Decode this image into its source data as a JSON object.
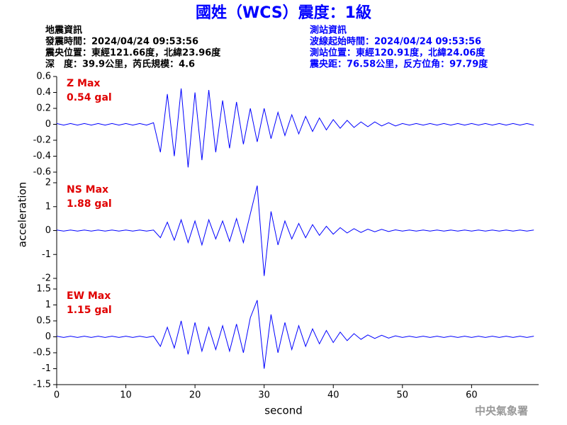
{
  "header": {
    "title": "國姓（WCS）震度：1級",
    "title_color": "#0000ff",
    "left": [
      "地震資訊",
      "發震時間：2024/04/24 09:53:56",
      "震央位置：東經121.66度，北緯23.96度",
      "深　度：39.9公里，芮氏規模：4.6"
    ],
    "right": [
      "測站資訊",
      "波線起始時間：2024/04/24 09:53:56",
      "測站位置：東經120.91度，北緯24.06度",
      "震央距：76.58公里，反方位角：97.79度"
    ],
    "right_color": "#0000ff"
  },
  "ylabel": "acceleration",
  "x_axis": {
    "label": "second",
    "xlim": [
      0,
      69.7
    ],
    "xticks": [
      0,
      10,
      20,
      30,
      40,
      50,
      60
    ],
    "x": [
      0,
      1,
      2,
      3,
      4,
      5,
      6,
      7,
      8,
      9,
      10,
      11,
      12,
      13,
      14,
      15,
      16,
      17,
      18,
      19,
      20,
      21,
      22,
      23,
      24,
      25,
      26,
      27,
      28,
      29,
      30,
      31,
      32,
      33,
      34,
      35,
      36,
      37,
      38,
      39,
      40,
      41,
      42,
      43,
      44,
      45,
      46,
      47,
      48,
      49,
      50,
      51,
      52,
      53,
      54,
      55,
      56,
      57,
      58,
      59,
      60,
      61,
      62,
      63,
      64,
      65,
      66,
      67,
      68,
      69
    ]
  },
  "footer": "中央氣象署",
  "chart_data": [
    {
      "type": "line",
      "annotations": [
        "Z Max",
        "0.54 gal"
      ],
      "annotation_color": "#e00000",
      "ylim": [
        -0.6,
        0.6
      ],
      "yticks": [
        0.6,
        0.4,
        0.2,
        0,
        -0.2,
        -0.4,
        -0.6
      ],
      "series": [
        {
          "color": "#0000ff",
          "values": [
            0.01,
            -0.01,
            0.01,
            -0.01,
            0.01,
            -0.01,
            0.01,
            -0.01,
            0.01,
            -0.01,
            0.01,
            -0.01,
            0.01,
            -0.01,
            0.02,
            -0.35,
            0.38,
            -0.4,
            0.45,
            -0.54,
            0.4,
            -0.45,
            0.43,
            -0.35,
            0.3,
            -0.3,
            0.28,
            -0.25,
            0.2,
            -0.22,
            0.2,
            -0.18,
            0.15,
            -0.14,
            0.12,
            -0.12,
            0.1,
            -0.09,
            0.08,
            -0.07,
            0.06,
            -0.05,
            0.05,
            -0.04,
            0.03,
            -0.03,
            0.03,
            -0.02,
            0.02,
            -0.02,
            0.01,
            -0.01,
            0.01,
            -0.01,
            0.01,
            -0.01,
            0.01,
            -0.01,
            0.01,
            -0.01,
            0.01,
            -0.01,
            0.01,
            -0.01,
            0.01,
            -0.01,
            0.01,
            -0.01,
            0.01,
            -0.01
          ]
        }
      ]
    },
    {
      "type": "line",
      "annotations": [
        "NS Max",
        "1.88 gal"
      ],
      "annotation_color": "#e00000",
      "ylim": [
        -2,
        2
      ],
      "yticks": [
        2,
        1,
        0,
        -1,
        -2
      ],
      "series": [
        {
          "color": "#0000ff",
          "values": [
            0.02,
            -0.02,
            0.02,
            -0.02,
            0.02,
            -0.02,
            0.02,
            -0.02,
            0.02,
            -0.02,
            0.02,
            -0.02,
            0.02,
            -0.02,
            0.02,
            -0.3,
            0.35,
            -0.4,
            0.45,
            -0.5,
            0.4,
            -0.6,
            0.45,
            -0.35,
            0.4,
            -0.45,
            0.5,
            -0.5,
            0.7,
            1.88,
            -1.9,
            0.8,
            -0.6,
            0.4,
            -0.35,
            0.3,
            -0.3,
            0.25,
            -0.2,
            0.18,
            -0.15,
            0.12,
            -0.1,
            0.08,
            -0.08,
            0.06,
            -0.05,
            0.05,
            -0.04,
            0.03,
            -0.02,
            0.02,
            -0.02,
            0.02,
            -0.02,
            0.02,
            -0.02,
            0.02,
            -0.02,
            0.02,
            -0.02,
            0.02,
            -0.02,
            0.02,
            -0.02,
            0.02,
            -0.02,
            0.02,
            -0.02,
            0.02
          ]
        }
      ]
    },
    {
      "type": "line",
      "annotations": [
        "EW Max",
        "1.15 gal"
      ],
      "annotation_color": "#e00000",
      "ylim": [
        -1.5,
        1.5
      ],
      "yticks": [
        1.5,
        1,
        0.5,
        0,
        -0.5,
        -1,
        -1.5
      ],
      "series": [
        {
          "color": "#0000ff",
          "values": [
            0.02,
            -0.02,
            0.02,
            -0.02,
            0.02,
            -0.02,
            0.02,
            -0.02,
            0.02,
            -0.02,
            0.02,
            -0.02,
            0.02,
            -0.02,
            0.02,
            -0.3,
            0.3,
            -0.35,
            0.5,
            -0.55,
            0.45,
            -0.45,
            0.3,
            -0.4,
            0.35,
            -0.45,
            0.4,
            -0.5,
            0.6,
            1.15,
            -1.0,
            0.7,
            -0.5,
            0.45,
            -0.4,
            0.35,
            -0.3,
            0.25,
            -0.22,
            0.2,
            -0.18,
            0.15,
            -0.12,
            0.1,
            -0.08,
            0.06,
            -0.05,
            0.05,
            -0.04,
            0.03,
            -0.02,
            0.02,
            -0.02,
            0.02,
            -0.02,
            0.02,
            -0.02,
            0.02,
            -0.02,
            0.02,
            -0.02,
            0.02,
            -0.02,
            0.02,
            -0.02,
            0.02,
            -0.02,
            0.02,
            -0.02,
            0.02
          ]
        }
      ]
    }
  ]
}
